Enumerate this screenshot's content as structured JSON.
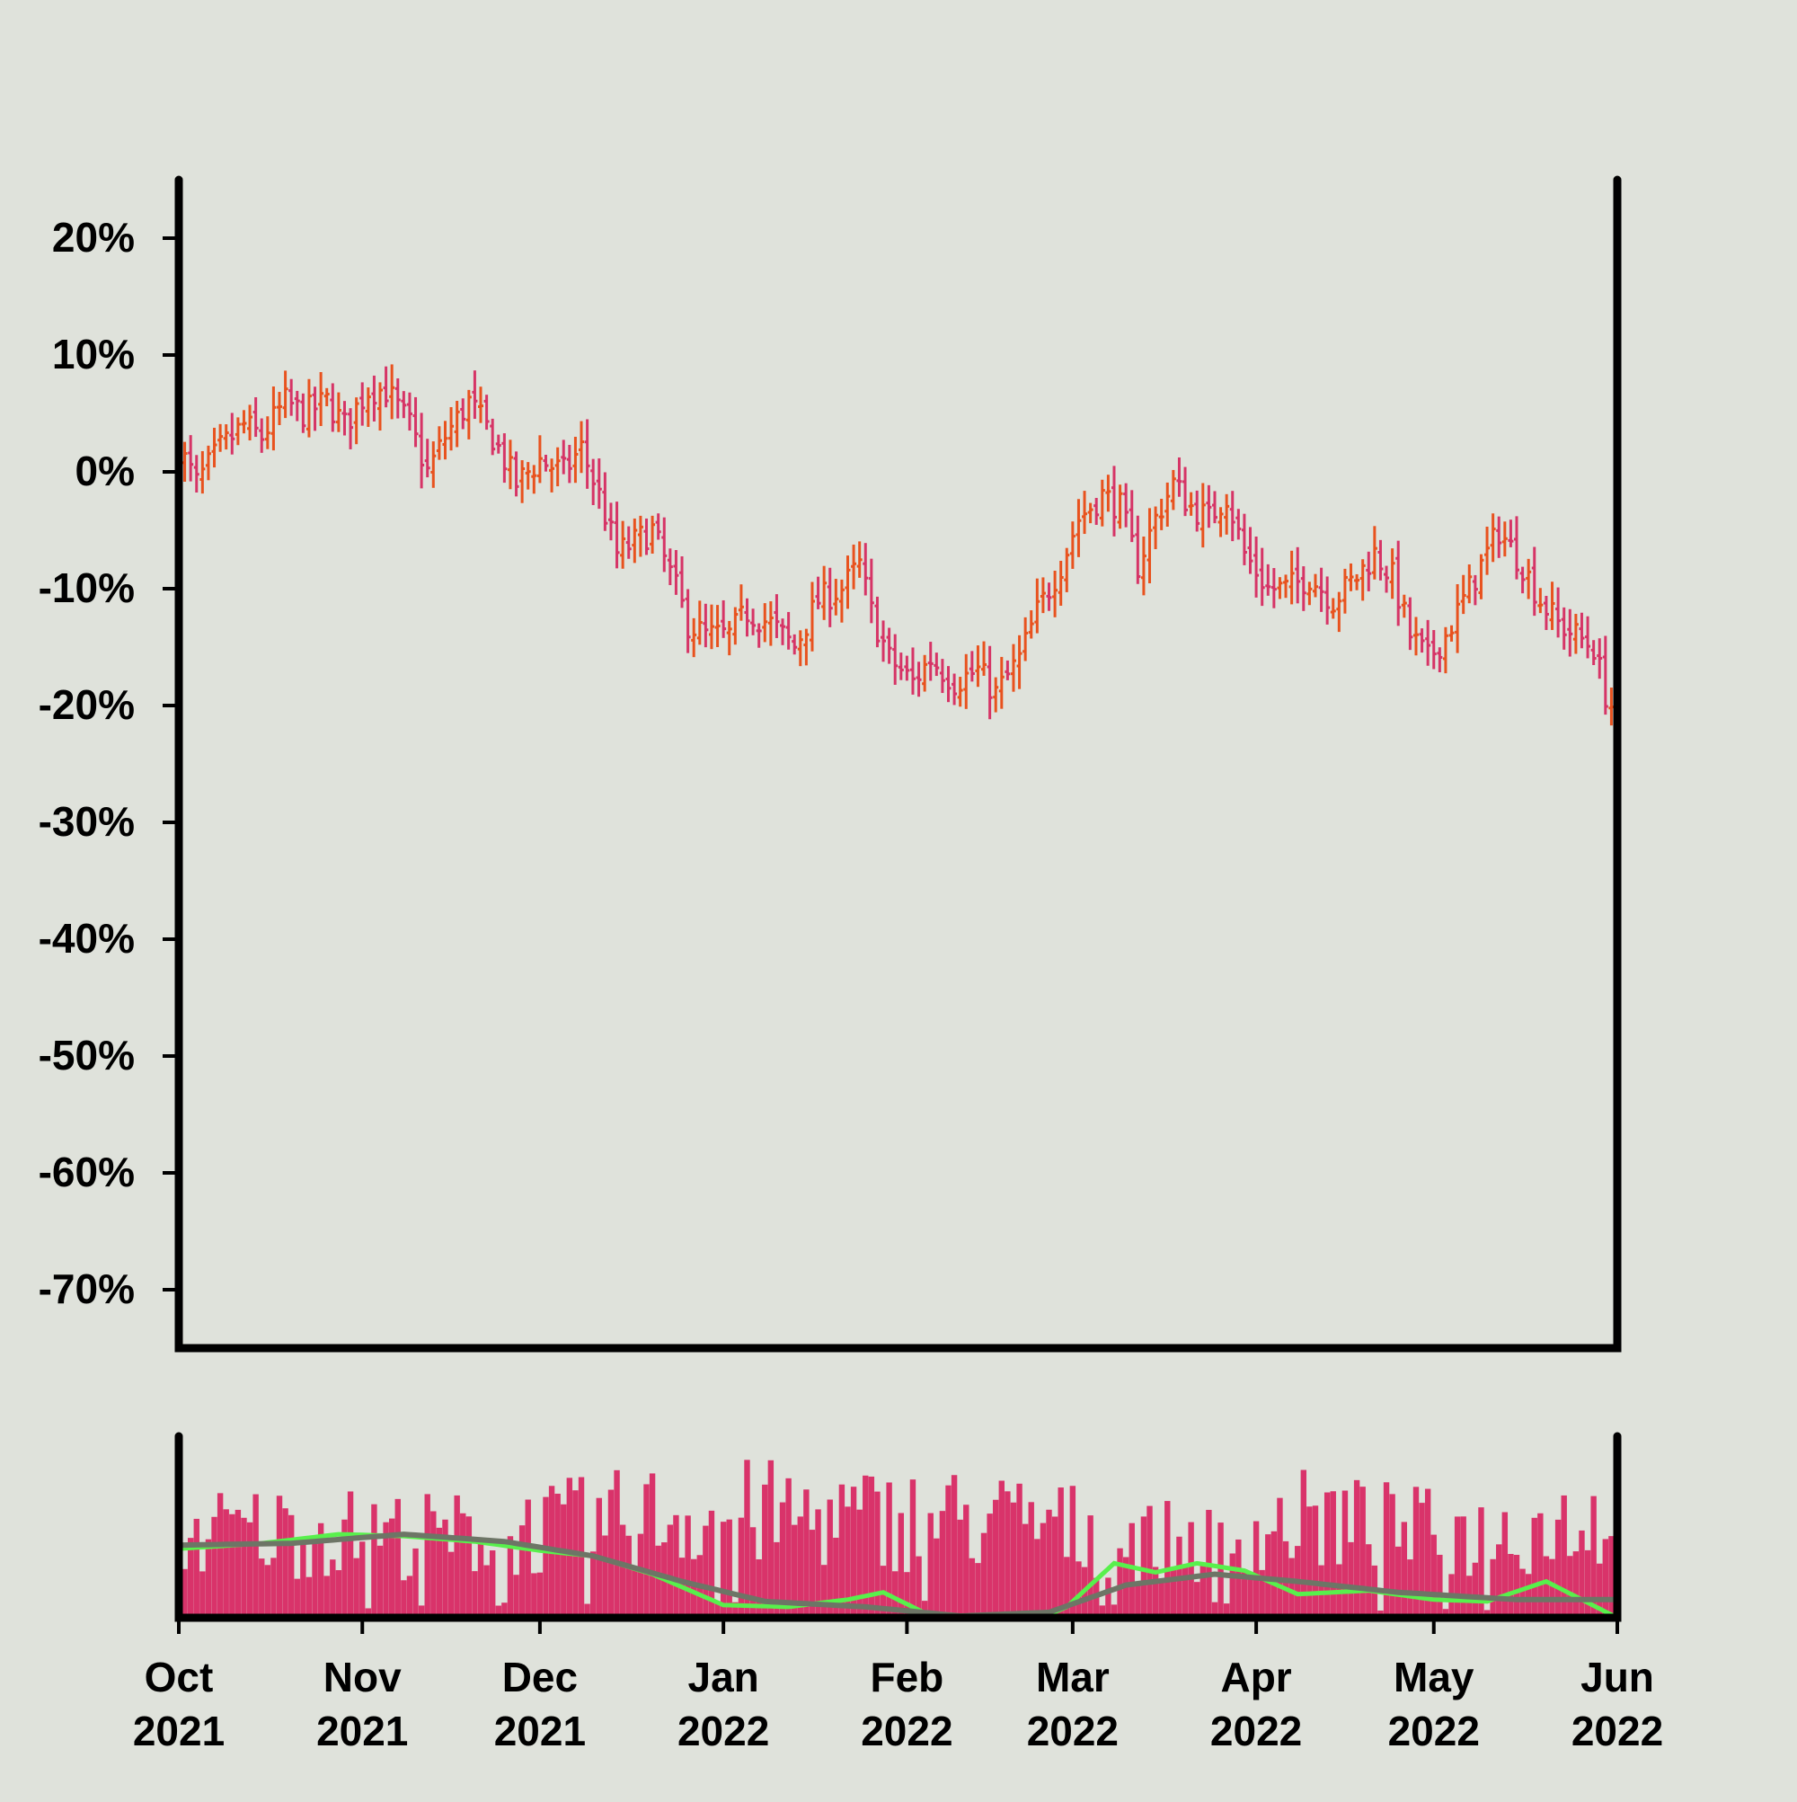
{
  "chart_data": [
    {
      "type": "ohlc",
      "title": "",
      "xlabel": "",
      "ylabel": "",
      "x_range": [
        "2021-10-01",
        "2022-06-01"
      ],
      "ylim": [
        -0.75,
        0.25
      ],
      "yticks": [
        0.2,
        0.1,
        0.0,
        -0.1,
        -0.2,
        -0.3,
        -0.4,
        -0.5,
        -0.6,
        -0.7
      ],
      "ytick_labels": [
        "20%",
        "10%",
        "0%",
        "-10%",
        "-20%",
        "-30%",
        "-40%",
        "-50%",
        "-60%",
        "-70%"
      ],
      "colors": {
        "up": "#e8521e",
        "down": "#d63466",
        "axis": "#000000",
        "background": "#dfe2db"
      },
      "close_path": [
        [
          "2021-10-01",
          0.02
        ],
        [
          "2021-10-04",
          -0.01
        ],
        [
          "2021-10-08",
          0.02
        ],
        [
          "2021-10-12",
          0.04
        ],
        [
          "2021-10-15",
          0.03
        ],
        [
          "2021-10-19",
          0.06
        ],
        [
          "2021-10-22",
          0.05
        ],
        [
          "2021-10-26",
          0.06
        ],
        [
          "2021-10-29",
          0.04
        ],
        [
          "2021-11-02",
          0.07
        ],
        [
          "2021-11-05",
          0.07
        ],
        [
          "2021-11-09",
          0.04
        ],
        [
          "2021-11-12",
          0.0
        ],
        [
          "2021-11-15",
          0.03
        ],
        [
          "2021-11-19",
          0.06
        ],
        [
          "2021-11-23",
          0.03
        ],
        [
          "2021-11-27",
          -0.01
        ],
        [
          "2021-12-01",
          0.01
        ],
        [
          "2021-12-05",
          0.0
        ],
        [
          "2021-12-08",
          0.02
        ],
        [
          "2021-12-11",
          -0.02
        ],
        [
          "2021-12-14",
          -0.07
        ],
        [
          "2021-12-17",
          -0.06
        ],
        [
          "2021-12-20",
          -0.05
        ],
        [
          "2021-12-24",
          -0.1
        ],
        [
          "2021-12-26",
          -0.13
        ],
        [
          "2021-12-29",
          -0.14
        ],
        [
          "2022-01-02",
          -0.14
        ],
        [
          "2022-01-05",
          -0.12
        ],
        [
          "2022-01-09",
          -0.13
        ],
        [
          "2022-01-13",
          -0.15
        ],
        [
          "2022-01-17",
          -0.11
        ],
        [
          "2022-01-21",
          -0.1
        ],
        [
          "2022-01-24",
          -0.08
        ],
        [
          "2022-01-26",
          -0.12
        ],
        [
          "2022-01-29",
          -0.16
        ],
        [
          "2022-02-02",
          -0.18
        ],
        [
          "2022-02-05",
          -0.16
        ],
        [
          "2022-02-09",
          -0.18
        ],
        [
          "2022-02-13",
          -0.17
        ],
        [
          "2022-02-16",
          -0.19
        ],
        [
          "2022-02-20",
          -0.16
        ],
        [
          "2022-02-23",
          -0.12
        ],
        [
          "2022-02-27",
          -0.08
        ],
        [
          "2022-03-02",
          -0.04
        ],
        [
          "2022-03-06",
          -0.02
        ],
        [
          "2022-03-09",
          -0.03
        ],
        [
          "2022-03-12",
          -0.08
        ],
        [
          "2022-03-15",
          -0.04
        ],
        [
          "2022-03-18",
          -0.01
        ],
        [
          "2022-03-21",
          -0.03
        ],
        [
          "2022-03-24",
          -0.04
        ],
        [
          "2022-03-27",
          -0.02
        ],
        [
          "2022-03-30",
          -0.07
        ],
        [
          "2022-04-03",
          -0.1
        ],
        [
          "2022-04-06",
          -0.1
        ],
        [
          "2022-04-10",
          -0.09
        ],
        [
          "2022-04-14",
          -0.11
        ],
        [
          "2022-04-18",
          -0.09
        ],
        [
          "2022-04-21",
          -0.07
        ],
        [
          "2022-04-24",
          -0.09
        ],
        [
          "2022-04-27",
          -0.14
        ],
        [
          "2022-04-30",
          -0.16
        ],
        [
          "2022-05-03",
          -0.14
        ],
        [
          "2022-05-06",
          -0.11
        ],
        [
          "2022-05-09",
          -0.08
        ],
        [
          "2022-05-12",
          -0.05
        ],
        [
          "2022-05-16",
          -0.08
        ],
        [
          "2022-05-19",
          -0.11
        ],
        [
          "2022-05-22",
          -0.13
        ],
        [
          "2022-05-25",
          -0.14
        ],
        [
          "2022-05-28",
          -0.15
        ],
        [
          "2022-05-30",
          -0.19
        ],
        [
          "2022-06-01",
          -0.21
        ]
      ]
    },
    {
      "type": "bar",
      "title": "",
      "x_range": [
        "2021-10-01",
        "2022-06-01"
      ],
      "xticks": [
        "2021-10-01",
        "2021-11-01",
        "2021-12-01",
        "2022-01-01",
        "2022-02-01",
        "2022-03-01",
        "2022-04-01",
        "2022-05-01",
        "2022-06-01"
      ],
      "xtick_labels": [
        [
          "Oct",
          "2021"
        ],
        [
          "Nov",
          "2021"
        ],
        [
          "Dec",
          "2021"
        ],
        [
          "Jan",
          "2022"
        ],
        [
          "Feb",
          "2022"
        ],
        [
          "Mar",
          "2022"
        ],
        [
          "Apr",
          "2022"
        ],
        [
          "May",
          "2022"
        ],
        [
          "Jun",
          "2022"
        ]
      ],
      "ylim": [
        0,
        1
      ],
      "colors": {
        "bars": "#d9336a",
        "fast_ma": "#58f04c",
        "slow_ma": "#6d7566"
      },
      "volume_profile": [
        [
          "2021-10-01",
          0.6
        ],
        [
          "2021-10-15",
          0.62
        ],
        [
          "2021-11-01",
          0.6
        ],
        [
          "2021-11-15",
          0.58
        ],
        [
          "2021-12-01",
          0.62
        ],
        [
          "2021-12-20",
          0.72
        ],
        [
          "2022-01-05",
          0.74
        ],
        [
          "2022-01-25",
          0.7
        ],
        [
          "2022-02-10",
          0.7
        ],
        [
          "2022-02-25",
          0.66
        ],
        [
          "2022-03-10",
          0.55
        ],
        [
          "2022-03-25",
          0.52
        ],
        [
          "2022-04-10",
          0.7
        ],
        [
          "2022-04-25",
          0.62
        ],
        [
          "2022-05-10",
          0.58
        ],
        [
          "2022-05-25",
          0.7
        ],
        [
          "2022-06-01",
          0.72
        ]
      ],
      "fast_ma": [
        [
          "2021-10-01",
          0.38
        ],
        [
          "2021-10-15",
          0.41
        ],
        [
          "2021-10-28",
          0.46
        ],
        [
          "2021-11-08",
          0.45
        ],
        [
          "2021-11-20",
          0.42
        ],
        [
          "2021-12-01",
          0.37
        ],
        [
          "2021-12-10",
          0.34
        ],
        [
          "2021-12-20",
          0.24
        ],
        [
          "2022-01-01",
          0.07
        ],
        [
          "2022-01-12",
          0.06
        ],
        [
          "2022-01-22",
          0.1
        ],
        [
          "2022-01-28",
          0.14
        ],
        [
          "2022-02-05",
          0.01
        ],
        [
          "2022-02-20",
          -0.05
        ],
        [
          "2022-02-28",
          0.06
        ],
        [
          "2022-03-08",
          0.3
        ],
        [
          "2022-03-15",
          0.25
        ],
        [
          "2022-03-22",
          0.3
        ],
        [
          "2022-03-30",
          0.26
        ],
        [
          "2022-04-08",
          0.13
        ],
        [
          "2022-04-20",
          0.15
        ],
        [
          "2022-05-01",
          0.1
        ],
        [
          "2022-05-10",
          0.09
        ],
        [
          "2022-05-20",
          0.2
        ],
        [
          "2022-06-01",
          0.0
        ]
      ],
      "slow_ma": [
        [
          "2021-10-01",
          0.4
        ],
        [
          "2021-10-20",
          0.41
        ],
        [
          "2021-11-08",
          0.46
        ],
        [
          "2021-11-25",
          0.42
        ],
        [
          "2021-12-10",
          0.34
        ],
        [
          "2021-12-25",
          0.2
        ],
        [
          "2022-01-08",
          0.09
        ],
        [
          "2022-01-25",
          0.06
        ],
        [
          "2022-02-10",
          0.01
        ],
        [
          "2022-02-25",
          0.03
        ],
        [
          "2022-03-10",
          0.18
        ],
        [
          "2022-03-25",
          0.24
        ],
        [
          "2022-04-08",
          0.2
        ],
        [
          "2022-04-25",
          0.14
        ],
        [
          "2022-05-15",
          0.1
        ],
        [
          "2022-06-01",
          0.1
        ]
      ]
    }
  ]
}
